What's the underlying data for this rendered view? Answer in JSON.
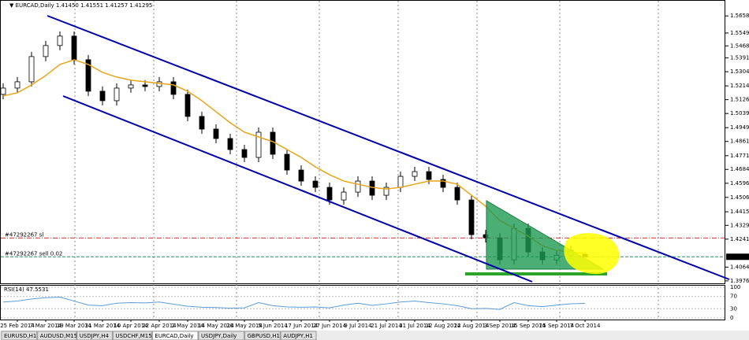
{
  "header": {
    "title": "▼ EURCAD,Daily  1.41450 1.41551 1.41257 1.41295"
  },
  "chart_data": {
    "type": "candlestick",
    "categories": [
      null,
      "25 Feb 2014",
      null,
      "7 Mar 2014",
      null,
      "19 Mar 2014",
      null,
      "31 Mar 2014",
      null,
      "10 Apr 2014",
      null,
      "22 Apr 2014",
      null,
      "2 May 2014",
      null,
      "14 May 2014",
      null,
      "26 May 2014",
      null,
      "5 Jun 2014",
      null,
      "17 Jun 2014",
      null,
      "27 Jun 2014",
      null,
      "9 Jul 2014",
      null,
      "21 Jul 2014",
      null,
      "31 Jul 2014",
      null,
      "12 Aug 2014",
      null,
      "22 Aug 2014",
      null,
      "3 Sep 2014",
      null,
      "15 Sep 2014",
      null,
      "25 Sep 2014",
      null,
      "7 Oct 2014"
    ],
    "ohlc": [
      [
        1.516,
        1.523,
        1.513,
        1.52
      ],
      [
        1.52,
        1.527,
        1.517,
        1.524
      ],
      [
        1.524,
        1.543,
        1.521,
        1.54
      ],
      [
        1.54,
        1.55,
        1.537,
        1.547
      ],
      [
        1.547,
        1.556,
        1.544,
        1.553
      ],
      [
        1.553,
        1.556,
        1.535,
        1.538
      ],
      [
        1.538,
        1.541,
        1.515,
        1.518
      ],
      [
        1.518,
        1.521,
        1.509,
        1.512
      ],
      [
        1.512,
        1.523,
        1.509,
        1.52
      ],
      [
        1.52,
        1.525,
        1.517,
        1.522
      ],
      [
        1.522,
        1.525,
        1.518,
        1.521
      ],
      [
        1.521,
        1.527,
        1.518,
        1.524
      ],
      [
        1.524,
        1.527,
        1.513,
        1.516
      ],
      [
        1.516,
        1.519,
        1.499,
        1.502
      ],
      [
        1.502,
        1.505,
        1.491,
        1.494
      ],
      [
        1.494,
        1.497,
        1.485,
        1.488
      ],
      [
        1.488,
        1.491,
        1.478,
        1.481
      ],
      [
        1.481,
        1.484,
        1.473,
        1.476
      ],
      [
        1.476,
        1.495,
        1.473,
        1.492
      ],
      [
        1.492,
        1.495,
        1.475,
        1.478
      ],
      [
        1.478,
        1.481,
        1.465,
        1.468
      ],
      [
        1.468,
        1.471,
        1.458,
        1.461
      ],
      [
        1.461,
        1.464,
        1.454,
        1.457
      ],
      [
        1.457,
        1.46,
        1.446,
        1.449
      ],
      [
        1.449,
        1.457,
        1.446,
        1.454
      ],
      [
        1.454,
        1.464,
        1.451,
        1.461
      ],
      [
        1.461,
        1.464,
        1.449,
        1.452
      ],
      [
        1.452,
        1.46,
        1.449,
        1.457
      ],
      [
        1.457,
        1.467,
        1.454,
        1.464
      ],
      [
        1.464,
        1.47,
        1.461,
        1.467
      ],
      [
        1.467,
        1.47,
        1.459,
        1.462
      ],
      [
        1.462,
        1.465,
        1.454,
        1.457
      ],
      [
        1.457,
        1.46,
        1.446,
        1.449
      ],
      [
        1.449,
        1.452,
        1.424,
        1.427
      ],
      [
        1.427,
        1.43,
        1.422,
        1.425
      ],
      [
        1.425,
        1.428,
        1.408,
        1.411
      ],
      [
        1.411,
        1.434,
        1.408,
        1.431
      ],
      [
        1.431,
        1.434,
        1.413,
        1.416
      ],
      [
        1.416,
        1.419,
        1.408,
        1.411
      ],
      [
        1.411,
        1.417,
        1.408,
        1.414
      ],
      [
        1.414,
        1.42,
        1.411,
        1.417
      ],
      [
        1.4145,
        1.41551,
        1.41257,
        1.41295
      ]
    ],
    "ma": {
      "color": "#e8a317",
      "values": [
        1.515,
        1.517,
        1.522,
        1.528,
        1.535,
        1.538,
        1.535,
        1.53,
        1.527,
        1.525,
        1.524,
        1.523,
        1.522,
        1.518,
        1.512,
        1.505,
        1.498,
        1.492,
        1.489,
        1.486,
        1.481,
        1.476,
        1.47,
        1.465,
        1.461,
        1.459,
        1.457,
        1.456,
        1.457,
        1.459,
        1.461,
        1.461,
        1.459,
        1.452,
        1.445,
        1.436,
        1.431,
        1.426,
        1.42,
        1.417,
        1.416,
        1.415
      ]
    },
    "ylim": [
      1.3961,
      1.5759
    ],
    "yticks": [
      {
        "value": 1.5658,
        "label": "1.56580"
      },
      {
        "value": 1.55495,
        "label": "1.55495"
      },
      {
        "value": 1.5468,
        "label": "1.54680"
      },
      {
        "value": 1.53915,
        "label": "1.53915"
      },
      {
        "value": 1.5304,
        "label": "1.53040"
      },
      {
        "value": 1.5214,
        "label": "1.52140"
      },
      {
        "value": 1.51265,
        "label": "1.51265"
      },
      {
        "value": 1.5039,
        "label": "1.50390"
      },
      {
        "value": 1.4949,
        "label": "1.49490"
      },
      {
        "value": 1.48615,
        "label": "1.48615"
      },
      {
        "value": 1.4771,
        "label": "1.47710"
      },
      {
        "value": 1.4684,
        "label": "1.46840"
      },
      {
        "value": 1.4596,
        "label": "1.45960"
      },
      {
        "value": 1.45065,
        "label": "1.45065"
      },
      {
        "value": 1.4415,
        "label": "1.44150"
      },
      {
        "value": 1.4329,
        "label": "1.43290"
      },
      {
        "value": 1.42415,
        "label": "1.42415"
      },
      {
        "value": 1.4064,
        "label": "1.40640"
      },
      {
        "value": 1.39765,
        "label": "1.39765"
      }
    ],
    "current_price": {
      "value": 1.41295,
      "label": "1.41295"
    },
    "orders": [
      {
        "label": "#47292267 sl",
        "value": 1.4249,
        "color": "#cc3333"
      },
      {
        "label": "#47292267 sell 0.02",
        "value": 1.41295,
        "color": "#2e8b57"
      }
    ],
    "rsi": {
      "title": "RSI(14) 47.5531",
      "color": "#5b9bd5",
      "ylim": [
        0,
        100
      ],
      "yticks": [
        100,
        70,
        30,
        0
      ],
      "values": [
        52,
        55,
        62,
        66,
        68,
        55,
        42,
        40,
        48,
        50,
        49,
        52,
        45,
        38,
        35,
        34,
        32,
        33,
        50,
        40,
        36,
        35,
        36,
        33,
        42,
        48,
        41,
        46,
        52,
        55,
        50,
        46,
        40,
        30,
        31,
        28,
        50,
        40,
        37,
        42,
        46,
        47.5531
      ]
    }
  },
  "tabs": [
    "EURUSD,H1",
    "AUDUSD,M15",
    "USDJPY,H4",
    "USDCHF,M15",
    "EURCAD,Daily",
    "USDJPY,Daily",
    "GBPUSD,H1",
    "AUDJPY,H1"
  ],
  "active_tab": 4
}
